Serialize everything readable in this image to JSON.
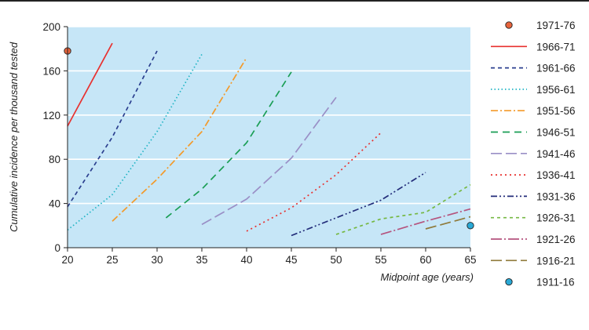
{
  "chart_data": {
    "type": "line",
    "xlabel": "Midpoint age (years)",
    "ylabel": "Cumulative incidence per thousand tested",
    "xlim": [
      20,
      65
    ],
    "ylim": [
      0,
      200
    ],
    "x_ticks": [
      20,
      25,
      30,
      35,
      40,
      45,
      50,
      55,
      60,
      65
    ],
    "y_ticks": [
      0,
      40,
      80,
      120,
      160,
      200
    ],
    "grid": "horizontal",
    "legend_position": "right",
    "plot_background": "#c6e6f7",
    "series": [
      {
        "name": "1971-76",
        "kind": "point",
        "color": "#e8643c",
        "points": [
          [
            20,
            178
          ]
        ]
      },
      {
        "name": "1966-71",
        "kind": "line",
        "color": "#e8312f",
        "dash": "",
        "points": [
          [
            20,
            110
          ],
          [
            25,
            185
          ]
        ]
      },
      {
        "name": "1961-66",
        "kind": "line",
        "color": "#2b3f8f",
        "dash": "5 4",
        "points": [
          [
            20,
            37
          ],
          [
            25,
            100
          ],
          [
            30,
            178
          ]
        ]
      },
      {
        "name": "1956-61",
        "kind": "line",
        "color": "#1fb4c4",
        "dash": "1.5 3",
        "points": [
          [
            20,
            16
          ],
          [
            25,
            48
          ],
          [
            30,
            105
          ],
          [
            35,
            175
          ]
        ]
      },
      {
        "name": "1951-56",
        "kind": "line",
        "color": "#f39a2a",
        "dash": "9 3 2 3",
        "points": [
          [
            25,
            24
          ],
          [
            30,
            62
          ],
          [
            35,
            105
          ],
          [
            40,
            172
          ]
        ]
      },
      {
        "name": "1946-51",
        "kind": "line",
        "color": "#1a9e55",
        "dash": "9 6",
        "points": [
          [
            31,
            27
          ],
          [
            35,
            53
          ],
          [
            40,
            95
          ],
          [
            45,
            159
          ]
        ]
      },
      {
        "name": "1941-46",
        "kind": "line",
        "color": "#9a8fc6",
        "dash": "14 5",
        "points": [
          [
            35,
            21
          ],
          [
            40,
            44
          ],
          [
            45,
            81
          ],
          [
            50,
            136
          ]
        ]
      },
      {
        "name": "1936-41",
        "kind": "line",
        "color": "#e8312f",
        "dash": "2 4",
        "points": [
          [
            40,
            15
          ],
          [
            45,
            36
          ],
          [
            50,
            66
          ],
          [
            55,
            104
          ]
        ]
      },
      {
        "name": "1931-36",
        "kind": "line",
        "color": "#232d7a",
        "dash": "8 3 2 3 2 3",
        "points": [
          [
            45,
            11
          ],
          [
            50,
            27
          ],
          [
            55,
            43
          ],
          [
            60,
            68
          ]
        ]
      },
      {
        "name": "1926-31",
        "kind": "line",
        "color": "#76b843",
        "dash": "4 4",
        "points": [
          [
            50,
            12
          ],
          [
            55,
            26
          ],
          [
            60,
            32
          ],
          [
            65,
            57
          ]
        ]
      },
      {
        "name": "1921-26",
        "kind": "line",
        "color": "#b5547e",
        "dash": "14 3 2 3",
        "points": [
          [
            55,
            12
          ],
          [
            60,
            24
          ],
          [
            65,
            35
          ]
        ]
      },
      {
        "name": "1916-21",
        "kind": "line",
        "color": "#8f7a3a",
        "dash": "14 5",
        "points": [
          [
            60,
            17
          ],
          [
            65,
            28
          ]
        ]
      },
      {
        "name": "1911-16",
        "kind": "point",
        "color": "#29a9d6",
        "points": [
          [
            65,
            20
          ]
        ]
      }
    ]
  }
}
